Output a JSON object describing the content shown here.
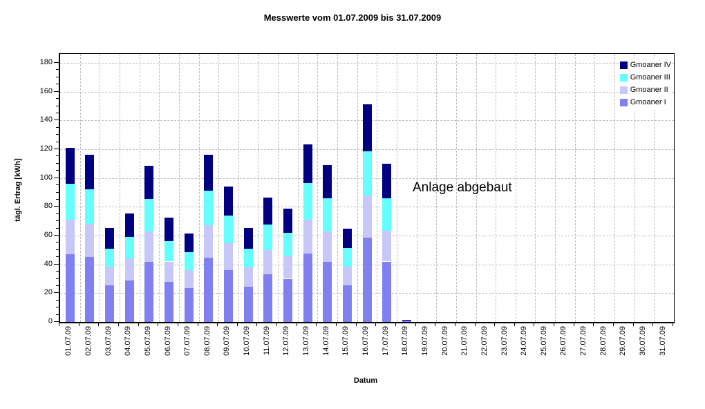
{
  "title": "Messwerte vom 01.07.2009 bis 31.07.2009",
  "annotation": "Anlage abgebaut",
  "colors": {
    "gmoaner_1": "#8080F0",
    "gmoaner_2": "#C8C8F8",
    "gmoaner_3": "#66FFFF",
    "gmoaner_4": "#000080",
    "gridline": "#BDBDBD",
    "axis": "#000000",
    "background": "#FFFFFF"
  },
  "chart_data": {
    "type": "bar",
    "stacked": true,
    "title": "Messwerte vom 01.07.2009 bis 31.07.2009",
    "xlabel": "Datum",
    "ylabel": "tägl. Ertrag [kWh]",
    "ylim": [
      0,
      180
    ],
    "ytick_step": 20,
    "ytick_minor_step": 5,
    "grid": true,
    "legend_position": "top-right-inside",
    "legend_order": [
      "Gmoaner IV",
      "Gmoaner III",
      "Gmoaner II",
      "Gmoaner I"
    ],
    "annotation": "Anlage abgebaut",
    "categories": [
      "01.07.09",
      "02.07.09",
      "03.07.09",
      "04.07.09",
      "05.07.09",
      "06.07.09",
      "07.07.09",
      "08.07.09",
      "09.07.09",
      "10.07.09",
      "11.07.09",
      "12.07.09",
      "13.07.09",
      "14.07.09",
      "15.07.09",
      "16.07.09",
      "17.07.09",
      "18.07.09",
      "19.07.09",
      "20.07.09",
      "21.07.09",
      "22.07.09",
      "23.07.09",
      "24.07.09",
      "25.07.09",
      "26.07.09",
      "27.07.09",
      "28.07.09",
      "29.07.09",
      "30.07.09",
      "31.07.09"
    ],
    "series": [
      {
        "name": "Gmoaner I",
        "color": "#8080F0",
        "values": [
          47,
          45,
          25.5,
          29,
          42,
          28,
          23.5,
          44.5,
          36,
          24.5,
          33,
          30,
          47.5,
          42,
          25.5,
          58.5,
          42,
          1,
          0,
          0,
          0,
          0,
          0,
          0,
          0,
          0,
          0,
          0,
          0,
          0,
          0
        ]
      },
      {
        "name": "Gmoaner II",
        "color": "#C8C8F8",
        "values": [
          24,
          23,
          13,
          15,
          21,
          14,
          12.5,
          22.5,
          18.5,
          13.5,
          17,
          15.5,
          23.5,
          21,
          13,
          29.5,
          21.5,
          0,
          0,
          0,
          0,
          0,
          0,
          0,
          0,
          0,
          0,
          0,
          0,
          0,
          0
        ]
      },
      {
        "name": "Gmoaner III",
        "color": "#66FFFF",
        "values": [
          25,
          24,
          12.5,
          15,
          22.5,
          14,
          12.5,
          24,
          19.5,
          13,
          17.5,
          16.5,
          25.5,
          23,
          13,
          30.5,
          22.5,
          0,
          0,
          0,
          0,
          0,
          0,
          0,
          0,
          0,
          0,
          0,
          0,
          0,
          0
        ]
      },
      {
        "name": "Gmoaner IV",
        "color": "#000080",
        "values": [
          25,
          24,
          14.5,
          16.5,
          23,
          16.5,
          13,
          25,
          20,
          14.5,
          19,
          16.5,
          27,
          23,
          13.5,
          32.5,
          24,
          0.5,
          0,
          0,
          0,
          0,
          0,
          0,
          0,
          0,
          0,
          0,
          0,
          0,
          0
        ]
      }
    ],
    "ytick_labels": [
      "0",
      "20",
      "40",
      "60",
      "80",
      "100",
      "120",
      "140",
      "160",
      "180"
    ]
  }
}
